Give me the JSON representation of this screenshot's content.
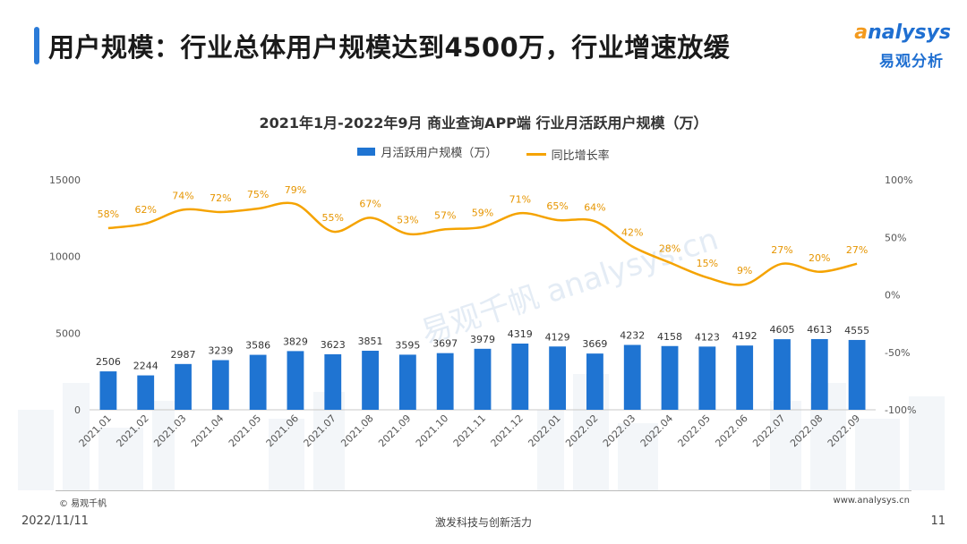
{
  "header": {
    "title": "用户规模：行业总体用户规模达到4500万，行业增速放缓"
  },
  "logo": {
    "en_prefix": "a",
    "en_rest": "nalysys",
    "cn": "易观分析"
  },
  "watermark": "易观千帆 analysys.cn",
  "footer": {
    "copyright": "© 易观千帆",
    "website": "www.analysys.cn",
    "date": "2022/11/11",
    "slogan": "激发科技与创新活力",
    "page": "11"
  },
  "colors": {
    "bar": "#1f74d2",
    "line": "#f5a300",
    "accent": "#2b7bd8"
  },
  "chart_data": {
    "type": "bar",
    "title": "2021年1月-2022年9月 商业查询APP端 行业月活跃用户规模（万）",
    "categories": [
      "2021.01",
      "2021.02",
      "2021.03",
      "2021.04",
      "2021.05",
      "2021.06",
      "2021.07",
      "2021.08",
      "2021.09",
      "2021.10",
      "2021.11",
      "2021.12",
      "2022.01",
      "2022.02",
      "2022.03",
      "2022.04",
      "2022.05",
      "2022.06",
      "2022.07",
      "2022.08",
      "2022.09"
    ],
    "series": [
      {
        "name": "月活跃用户规模（万）",
        "type": "bar",
        "axis": "left",
        "values": [
          2506,
          2244,
          2987,
          3239,
          3586,
          3829,
          3623,
          3851,
          3595,
          3697,
          3979,
          4319,
          4129,
          3669,
          4232,
          4158,
          4123,
          4192,
          4605,
          4613,
          4555
        ]
      },
      {
        "name": "同比增长率",
        "type": "line",
        "axis": "right",
        "values": [
          58,
          62,
          74,
          72,
          75,
          79,
          55,
          67,
          53,
          57,
          59,
          71,
          65,
          64,
          42,
          28,
          15,
          9,
          27,
          20,
          27
        ]
      }
    ],
    "y_left": {
      "min": 0,
      "max": 15000,
      "ticks": [
        "0",
        "5000",
        "10000",
        "15000"
      ]
    },
    "y_right": {
      "min": -100,
      "max": 100,
      "ticks": [
        "-100%",
        "-50%",
        "0%",
        "50%",
        "100%"
      ]
    },
    "legend_position": "top-center"
  }
}
